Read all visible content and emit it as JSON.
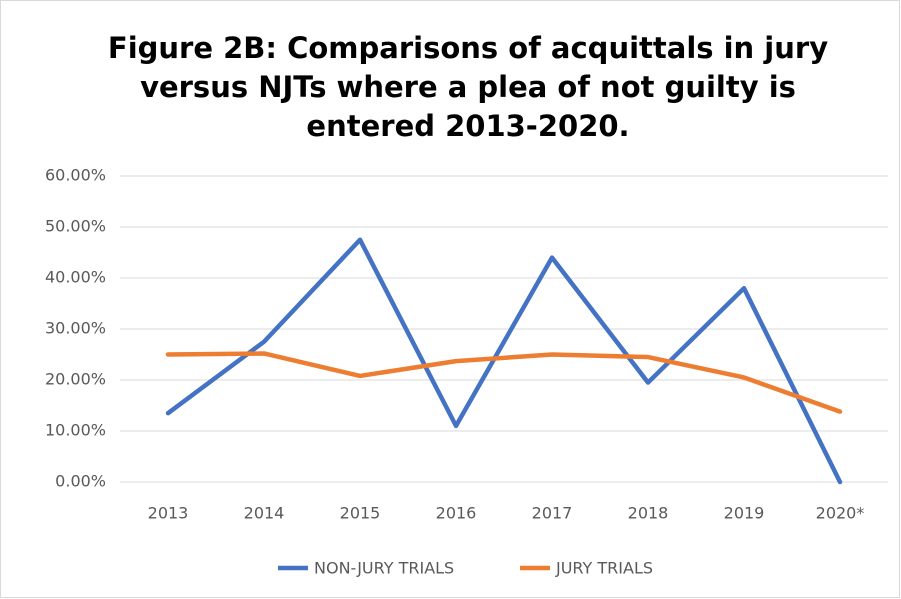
{
  "chart_data": {
    "type": "line",
    "title": [
      "Figure 2B: Comparisons of acquittals in jury",
      "versus NJTs where a plea of not guilty is",
      "entered 2013-2020."
    ],
    "categories": [
      "2013",
      "2014",
      "2015",
      "2016",
      "2017",
      "2018",
      "2019",
      "2020*"
    ],
    "series": [
      {
        "name": "NON-JURY TRIALS",
        "color": "#4472c4",
        "values": [
          13.5,
          27.5,
          47.5,
          11,
          44,
          19.5,
          38,
          0
        ]
      },
      {
        "name": "JURY TRIALS",
        "color": "#ed7d31",
        "values": [
          25,
          25.2,
          20.8,
          23.7,
          25,
          24.5,
          20.5,
          13.8
        ]
      }
    ],
    "ylim": [
      0,
      60
    ],
    "yticks": [
      {
        "value": 0,
        "label": "0.00%"
      },
      {
        "value": 10,
        "label": "10.00%"
      },
      {
        "value": 20,
        "label": "20.00%"
      },
      {
        "value": 30,
        "label": "30.00%"
      },
      {
        "value": 40,
        "label": "40.00%"
      },
      {
        "value": 50,
        "label": "50.00%"
      },
      {
        "value": 60,
        "label": "60.00%"
      }
    ],
    "grid": true,
    "legend": "bottom"
  }
}
